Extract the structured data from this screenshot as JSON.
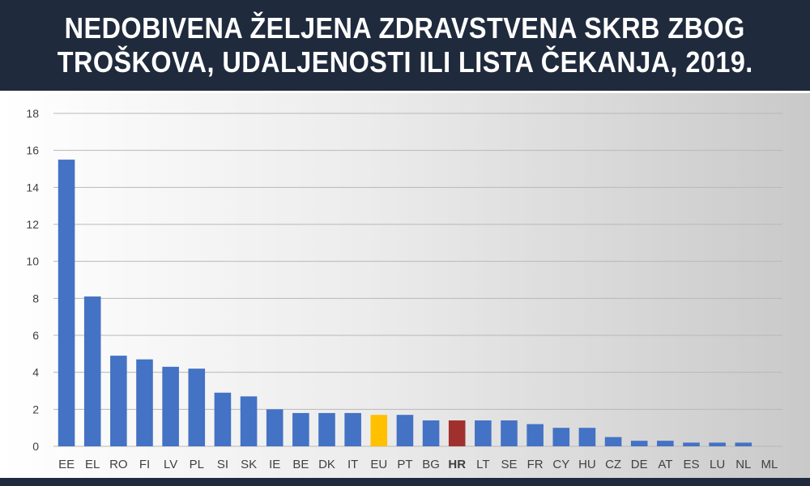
{
  "title": {
    "line1": "NEDOBIVENA ŽELJENA ZDRAVSTVENA SKRB ZBOG",
    "line2": "TROŠKOVA, UDALJENOSTI ILI LISTA ČEKANJA, 2019."
  },
  "colors": {
    "default_bar": "#4472c4",
    "eu_bar": "#ffc000",
    "hr_bar": "#a0302e",
    "grid": "#b8b8b8",
    "tick_text": "#404040"
  },
  "chart_data": {
    "type": "bar",
    "title": "NEDOBIVENA ŽELJENA ZDRAVSTVENA SKRB ZBOG TROŠKOVA, UDALJENOSTI ILI LISTA ČEKANJA, 2019.",
    "xlabel": "",
    "ylabel": "",
    "ylim": [
      0,
      18
    ],
    "yticks": [
      0,
      2,
      4,
      6,
      8,
      10,
      12,
      14,
      16,
      18
    ],
    "grid": true,
    "legend": "none",
    "categories": [
      "EE",
      "EL",
      "RO",
      "FI",
      "LV",
      "PL",
      "SI",
      "SK",
      "IE",
      "BE",
      "DK",
      "IT",
      "EU",
      "PT",
      "BG",
      "HR",
      "LT",
      "SE",
      "FR",
      "CY",
      "HU",
      "CZ",
      "DE",
      "AT",
      "ES",
      "LU",
      "NL",
      "ML"
    ],
    "values": [
      15.5,
      8.1,
      4.9,
      4.7,
      4.3,
      4.2,
      2.9,
      2.7,
      2.0,
      1.8,
      1.8,
      1.8,
      1.7,
      1.7,
      1.4,
      1.4,
      1.4,
      1.4,
      1.2,
      1.0,
      1.0,
      0.5,
      0.3,
      0.3,
      0.2,
      0.2,
      0.2,
      0.0
    ],
    "highlight": {
      "EU": "eu_bar",
      "HR": "hr_bar"
    },
    "bold_categories": [
      "HR"
    ]
  }
}
